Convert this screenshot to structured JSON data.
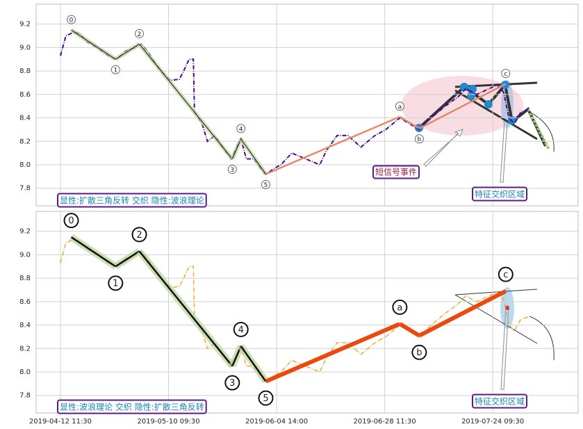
{
  "chart_data": [
    {
      "type": "line",
      "xlim": [
        -22.5,
        479
      ],
      "ylim": [
        7.65,
        9.37
      ],
      "yticks": [
        7.8,
        {
          "value": 8,
          "label": "8.0"
        },
        8.2,
        8.4,
        8.6,
        8.8,
        {
          "value": 9,
          "label": "9.0"
        },
        9.2
      ],
      "x": [
        0,
        5,
        12,
        18,
        24,
        34,
        44,
        52,
        60,
        69,
        75,
        82,
        89,
        95,
        102,
        110,
        114,
        119,
        123,
        124,
        131,
        136,
        143,
        150,
        158,
        163,
        167,
        172,
        179,
        185,
        190,
        198,
        204,
        214,
        227,
        240,
        246,
        256,
        266,
        278,
        291,
        301,
        314,
        323,
        332,
        343,
        356,
        368,
        375,
        385,
        397,
        404,
        410,
        415,
        420,
        426,
        433
      ],
      "series": [
        {
          "color": "#4b0a8c",
          "values": [
            8.93,
            9.1,
            9.13,
            9.12,
            9.05,
            9.0,
            8.93,
            8.9,
            8.97,
            9.0,
            9.03,
            8.95,
            8.85,
            8.78,
            8.72,
            8.73,
            8.8,
            8.9,
            8.9,
            8.45,
            8.35,
            8.2,
            8.25,
            8.15,
            8.05,
            8.15,
            8.22,
            8.05,
            8.05,
            7.97,
            7.92,
            7.97,
            8.0,
            8.1,
            8.05,
            8.0,
            8.12,
            8.25,
            8.25,
            8.15,
            8.25,
            8.3,
            8.4,
            8.35,
            8.3,
            8.4,
            8.5,
            8.58,
            8.65,
            8.6,
            8.65,
            8.68,
            8.62,
            8.4,
            8.35,
            8.45,
            8.47
          ]
        }
      ],
      "waves": {
        "labels": [
          "0",
          "1",
          "2",
          "3",
          "4",
          "5",
          "a",
          "b",
          "c"
        ],
        "x": [
          10,
          51,
          73,
          159,
          167,
          190,
          314,
          332,
          412
        ],
        "values": [
          9.15,
          8.9,
          9.03,
          8.05,
          8.22,
          7.92,
          8.41,
          8.31,
          8.69
        ]
      },
      "annotations": [
        "显性:扩散三角反转 交织 隐性:波浪理论",
        "短信号事件",
        "特征交织区域"
      ]
    },
    {
      "type": "line",
      "xlim": [
        -22.5,
        479
      ],
      "ylim": [
        7.65,
        9.37
      ],
      "yticks": [
        7.8,
        {
          "value": 8,
          "label": "8.0"
        },
        8.2,
        8.4,
        8.6,
        8.8,
        {
          "value": 9,
          "label": "9.0"
        },
        9.2
      ],
      "xticks": [
        {
          "value": 0,
          "label": "2019-04-12 11:30"
        },
        {
          "value": 100,
          "label": "2019-05-10 09:30"
        },
        {
          "value": 200,
          "label": "2019-06-04 14:00"
        },
        {
          "value": 300,
          "label": "2019-06-28 11:30"
        },
        {
          "value": 400,
          "label": "2019-07-24 09:30"
        }
      ],
      "x": [
        0,
        5,
        12,
        18,
        24,
        34,
        44,
        52,
        60,
        69,
        75,
        82,
        89,
        95,
        102,
        110,
        114,
        119,
        123,
        124,
        131,
        136,
        143,
        150,
        158,
        163,
        167,
        172,
        179,
        185,
        190,
        198,
        204,
        214,
        227,
        240,
        246,
        256,
        266,
        278,
        291,
        301,
        314,
        323,
        332,
        343,
        356,
        368,
        375,
        385,
        397,
        404,
        410,
        415,
        420,
        426,
        433
      ],
      "series": [
        {
          "color": "#e8a838",
          "values": [
            8.93,
            9.1,
            9.13,
            9.12,
            9.05,
            9.0,
            8.93,
            8.9,
            8.97,
            9.0,
            9.03,
            8.95,
            8.85,
            8.78,
            8.72,
            8.73,
            8.8,
            8.9,
            8.9,
            8.45,
            8.35,
            8.2,
            8.25,
            8.15,
            8.05,
            8.15,
            8.22,
            8.05,
            8.05,
            7.97,
            7.92,
            7.97,
            8.0,
            8.1,
            8.05,
            8.0,
            8.12,
            8.25,
            8.25,
            8.15,
            8.25,
            8.3,
            8.4,
            8.35,
            8.3,
            8.4,
            8.5,
            8.58,
            8.65,
            8.6,
            8.65,
            8.68,
            8.62,
            8.4,
            8.35,
            8.45,
            8.47
          ]
        }
      ],
      "waves": {
        "labels": [
          "0",
          "1",
          "2",
          "3",
          "4",
          "5",
          "a",
          "b",
          "c"
        ],
        "x": [
          10,
          51,
          73,
          159,
          167,
          190,
          314,
          332,
          412
        ],
        "values": [
          9.15,
          8.9,
          9.03,
          8.05,
          8.22,
          7.92,
          8.41,
          8.31,
          8.69
        ]
      },
      "annotations": [
        "显性:波浪理论 交织 隐性:扩散三角反转",
        "特征交织区域"
      ]
    }
  ]
}
